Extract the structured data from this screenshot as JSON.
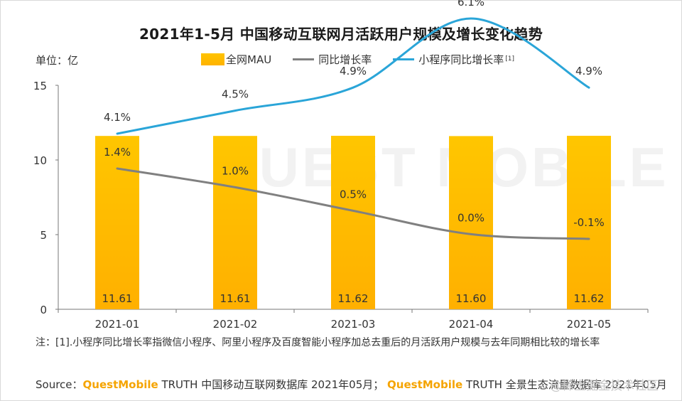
{
  "title": "2021年1-5月 中国移动互联网月活跃用户规模及增长变化趋势",
  "unit_label": "单位：亿",
  "legend": [
    {
      "label": "全网MAU",
      "kind": "bar",
      "color": "#ffbc00"
    },
    {
      "label": "同比增长率",
      "kind": "line",
      "color": "#808080"
    },
    {
      "label": "小程序同比增长率",
      "kind": "line",
      "color": "#2aa5d8",
      "sup": "[1]"
    }
  ],
  "chart_data": {
    "type": "bar",
    "title": "2021年1-5月 中国移动互联网月活跃用户规模及增长变化趋势",
    "categories": [
      "2021-01",
      "2021-02",
      "2021-03",
      "2021-04",
      "2021-05"
    ],
    "ylim": [
      0,
      15
    ],
    "yticks": [
      0,
      5,
      10,
      15
    ],
    "grid": false,
    "legend_position": "top",
    "series": [
      {
        "name": "全网MAU",
        "kind": "bar",
        "values": [
          11.61,
          11.61,
          11.62,
          11.6,
          11.62
        ],
        "labels": [
          "11.61",
          "11.61",
          "11.62",
          "11.60",
          "11.62"
        ]
      },
      {
        "name": "同比增长率",
        "kind": "line",
        "values": [
          1.4,
          1.0,
          0.5,
          0.0,
          -0.1
        ],
        "labels": [
          "1.4%",
          "1.0%",
          "0.5%",
          "0.0%",
          "-0.1%"
        ]
      },
      {
        "name": "小程序同比增长率",
        "kind": "line",
        "values": [
          4.1,
          4.5,
          4.9,
          6.1,
          4.9
        ],
        "labels": [
          "4.1%",
          "4.5%",
          "4.9%",
          "6.1%",
          "4.9%"
        ]
      }
    ]
  },
  "note": "注：[1].小程序同比增长率指微信小程序、阿里小程序及百度智能小程序加总去重后的月活跃用户规模与去年同期相比较的增长率",
  "source": {
    "prefix": "Source：",
    "brand1": "QuestMobile",
    "text1": " TRUTH 中国移动互联网数据库 2021年05月；",
    "brand2": "QuestMobile",
    "text2": " TRUTH 全景生态流量数据库 2021年05月"
  },
  "watermark": "@稀土掘金技术社区",
  "background_watermark": "QUEST MOBILE"
}
